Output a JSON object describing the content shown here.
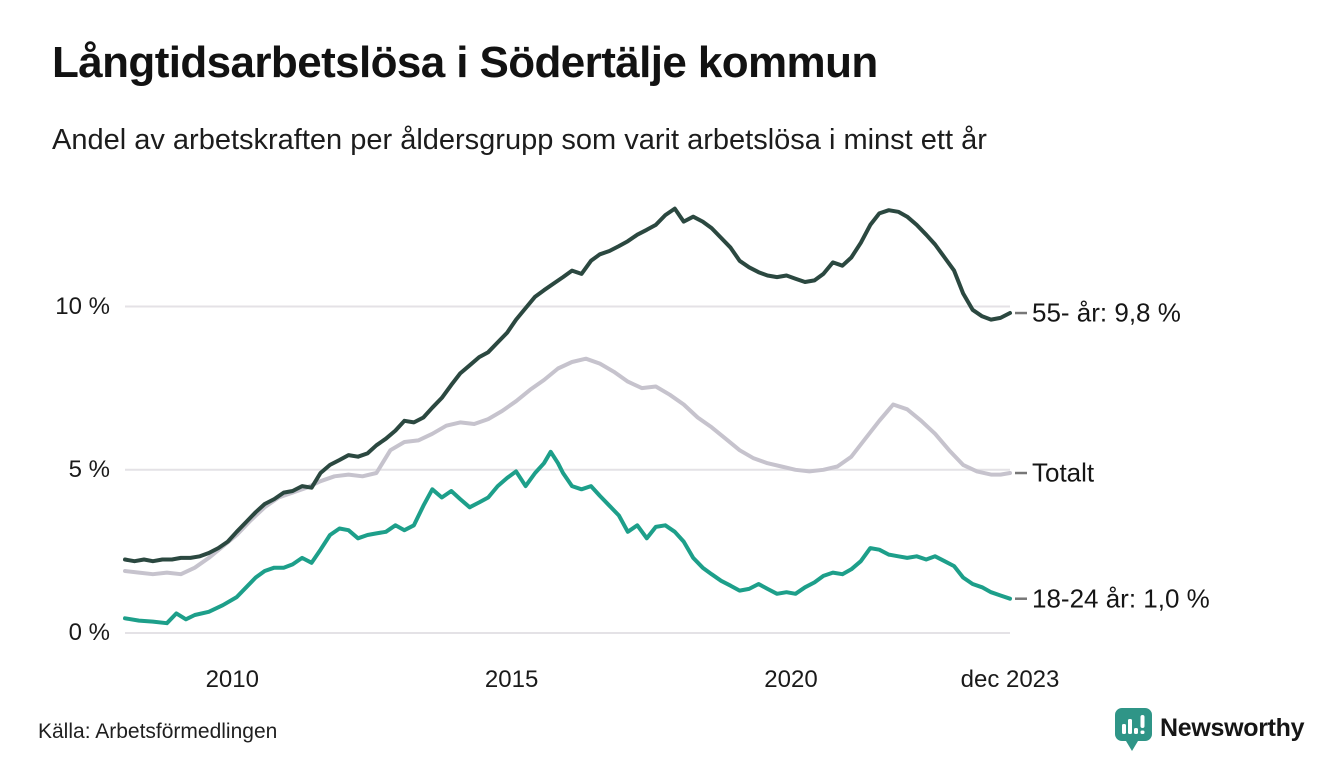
{
  "header": {
    "title": "Långtidsarbetslösa i Södertälje kommun",
    "subtitle": "Andel av arbetskraften per åldersgrupp som varit arbetslösa i minst ett år"
  },
  "footer": {
    "source": "Källa: Arbetsförmedlingen",
    "brand": "Newsworthy"
  },
  "colors": {
    "line_55": "#2b4840",
    "line_total": "#c6c3cd",
    "line_18_24": "#1d9f8a",
    "grid": "#e4e2e6",
    "label_dash": "#777777",
    "brand_teal": "#2f9587",
    "text": "#161616"
  },
  "chart_data": {
    "type": "line",
    "title": "Långtidsarbetslösa i Södertälje kommun",
    "subtitle": "Andel av arbetskraften per åldersgrupp som varit arbetslösa i minst ett år",
    "unit": "%",
    "grid": "horizontal-only",
    "legend_position": "right-end-labels",
    "x_axis": {
      "range": [
        2008.08,
        2023.92
      ],
      "ticks": [
        {
          "label": "2010",
          "year": 2010
        },
        {
          "label": "2015",
          "year": 2015
        },
        {
          "label": "2020",
          "year": 2020
        },
        {
          "label": "dec 2023",
          "year": 2023.92
        }
      ]
    },
    "y_axis": {
      "range": [
        0,
        13.5
      ],
      "gridlines": [
        0,
        5,
        10
      ],
      "ticks": [
        {
          "label": "10 %",
          "value": 10
        },
        {
          "label": "5 %",
          "value": 5
        },
        {
          "label": "0 %",
          "value": 0
        }
      ]
    },
    "series": [
      {
        "name": "55- år",
        "end_label": "55- år: 9,8 %",
        "end_value": 9.8,
        "color": "#2b4840",
        "points": [
          [
            2008.08,
            2.25
          ],
          [
            2008.25,
            2.2
          ],
          [
            2008.42,
            2.25
          ],
          [
            2008.58,
            2.2
          ],
          [
            2008.75,
            2.25
          ],
          [
            2008.92,
            2.25
          ],
          [
            2009.08,
            2.3
          ],
          [
            2009.25,
            2.3
          ],
          [
            2009.42,
            2.35
          ],
          [
            2009.58,
            2.45
          ],
          [
            2009.75,
            2.6
          ],
          [
            2009.92,
            2.8
          ],
          [
            2010.08,
            3.1
          ],
          [
            2010.25,
            3.4
          ],
          [
            2010.42,
            3.7
          ],
          [
            2010.58,
            3.95
          ],
          [
            2010.75,
            4.1
          ],
          [
            2010.92,
            4.3
          ],
          [
            2011.08,
            4.35
          ],
          [
            2011.25,
            4.5
          ],
          [
            2011.42,
            4.45
          ],
          [
            2011.58,
            4.9
          ],
          [
            2011.75,
            5.15
          ],
          [
            2011.92,
            5.3
          ],
          [
            2012.08,
            5.45
          ],
          [
            2012.25,
            5.4
          ],
          [
            2012.42,
            5.5
          ],
          [
            2012.58,
            5.75
          ],
          [
            2012.75,
            5.95
          ],
          [
            2012.92,
            6.2
          ],
          [
            2013.08,
            6.5
          ],
          [
            2013.25,
            6.45
          ],
          [
            2013.42,
            6.6
          ],
          [
            2013.58,
            6.9
          ],
          [
            2013.75,
            7.2
          ],
          [
            2013.92,
            7.6
          ],
          [
            2014.08,
            7.95
          ],
          [
            2014.25,
            8.2
          ],
          [
            2014.42,
            8.45
          ],
          [
            2014.58,
            8.6
          ],
          [
            2014.75,
            8.9
          ],
          [
            2014.92,
            9.2
          ],
          [
            2015.08,
            9.6
          ],
          [
            2015.25,
            9.95
          ],
          [
            2015.42,
            10.3
          ],
          [
            2015.58,
            10.5
          ],
          [
            2015.75,
            10.7
          ],
          [
            2015.92,
            10.9
          ],
          [
            2016.08,
            11.1
          ],
          [
            2016.25,
            11.0
          ],
          [
            2016.42,
            11.4
          ],
          [
            2016.58,
            11.6
          ],
          [
            2016.75,
            11.7
          ],
          [
            2016.92,
            11.85
          ],
          [
            2017.08,
            12.0
          ],
          [
            2017.25,
            12.2
          ],
          [
            2017.42,
            12.35
          ],
          [
            2017.58,
            12.5
          ],
          [
            2017.75,
            12.8
          ],
          [
            2017.92,
            13.0
          ],
          [
            2018.08,
            12.6
          ],
          [
            2018.25,
            12.75
          ],
          [
            2018.42,
            12.6
          ],
          [
            2018.58,
            12.4
          ],
          [
            2018.75,
            12.1
          ],
          [
            2018.92,
            11.8
          ],
          [
            2019.08,
            11.4
          ],
          [
            2019.25,
            11.2
          ],
          [
            2019.42,
            11.05
          ],
          [
            2019.58,
            10.95
          ],
          [
            2019.75,
            10.9
          ],
          [
            2019.92,
            10.95
          ],
          [
            2020.08,
            10.85
          ],
          [
            2020.25,
            10.75
          ],
          [
            2020.42,
            10.8
          ],
          [
            2020.58,
            11.0
          ],
          [
            2020.75,
            11.35
          ],
          [
            2020.92,
            11.25
          ],
          [
            2021.08,
            11.5
          ],
          [
            2021.25,
            11.95
          ],
          [
            2021.42,
            12.5
          ],
          [
            2021.58,
            12.85
          ],
          [
            2021.75,
            12.95
          ],
          [
            2021.92,
            12.9
          ],
          [
            2022.08,
            12.75
          ],
          [
            2022.25,
            12.5
          ],
          [
            2022.42,
            12.2
          ],
          [
            2022.58,
            11.9
          ],
          [
            2022.75,
            11.5
          ],
          [
            2022.92,
            11.1
          ],
          [
            2023.08,
            10.4
          ],
          [
            2023.25,
            9.9
          ],
          [
            2023.42,
            9.7
          ],
          [
            2023.58,
            9.6
          ],
          [
            2023.75,
            9.65
          ],
          [
            2023.92,
            9.8
          ]
        ]
      },
      {
        "name": "Totalt",
        "end_label": "Totalt",
        "end_value": 4.9,
        "color": "#c6c3cd",
        "points": [
          [
            2008.08,
            1.9
          ],
          [
            2008.33,
            1.85
          ],
          [
            2008.58,
            1.8
          ],
          [
            2008.83,
            1.85
          ],
          [
            2009.08,
            1.8
          ],
          [
            2009.33,
            2.0
          ],
          [
            2009.58,
            2.3
          ],
          [
            2009.83,
            2.65
          ],
          [
            2010.08,
            3.0
          ],
          [
            2010.33,
            3.45
          ],
          [
            2010.58,
            3.85
          ],
          [
            2010.83,
            4.15
          ],
          [
            2011.08,
            4.3
          ],
          [
            2011.33,
            4.45
          ],
          [
            2011.58,
            4.65
          ],
          [
            2011.83,
            4.8
          ],
          [
            2012.08,
            4.85
          ],
          [
            2012.33,
            4.8
          ],
          [
            2012.58,
            4.9
          ],
          [
            2012.83,
            5.6
          ],
          [
            2013.08,
            5.85
          ],
          [
            2013.33,
            5.9
          ],
          [
            2013.58,
            6.1
          ],
          [
            2013.83,
            6.35
          ],
          [
            2014.08,
            6.45
          ],
          [
            2014.33,
            6.4
          ],
          [
            2014.58,
            6.55
          ],
          [
            2014.83,
            6.8
          ],
          [
            2015.08,
            7.1
          ],
          [
            2015.33,
            7.45
          ],
          [
            2015.58,
            7.75
          ],
          [
            2015.83,
            8.1
          ],
          [
            2016.08,
            8.3
          ],
          [
            2016.33,
            8.4
          ],
          [
            2016.58,
            8.25
          ],
          [
            2016.83,
            8.0
          ],
          [
            2017.08,
            7.7
          ],
          [
            2017.33,
            7.5
          ],
          [
            2017.58,
            7.55
          ],
          [
            2017.83,
            7.3
          ],
          [
            2018.08,
            7.0
          ],
          [
            2018.33,
            6.6
          ],
          [
            2018.58,
            6.3
          ],
          [
            2018.83,
            5.95
          ],
          [
            2019.08,
            5.6
          ],
          [
            2019.33,
            5.35
          ],
          [
            2019.58,
            5.2
          ],
          [
            2019.83,
            5.1
          ],
          [
            2020.08,
            5.0
          ],
          [
            2020.33,
            4.95
          ],
          [
            2020.58,
            5.0
          ],
          [
            2020.83,
            5.1
          ],
          [
            2021.08,
            5.4
          ],
          [
            2021.33,
            5.95
          ],
          [
            2021.58,
            6.5
          ],
          [
            2021.83,
            7.0
          ],
          [
            2022.08,
            6.85
          ],
          [
            2022.33,
            6.5
          ],
          [
            2022.58,
            6.1
          ],
          [
            2022.83,
            5.6
          ],
          [
            2023.08,
            5.15
          ],
          [
            2023.33,
            4.95
          ],
          [
            2023.58,
            4.85
          ],
          [
            2023.75,
            4.85
          ],
          [
            2023.92,
            4.9
          ]
        ]
      },
      {
        "name": "18-24 år",
        "end_label": "18-24 år: 1,0 %",
        "end_value": 1.0,
        "color": "#1d9f8a",
        "points": [
          [
            2008.08,
            0.45
          ],
          [
            2008.33,
            0.38
          ],
          [
            2008.58,
            0.35
          ],
          [
            2008.83,
            0.3
          ],
          [
            2009.0,
            0.6
          ],
          [
            2009.17,
            0.42
          ],
          [
            2009.33,
            0.55
          ],
          [
            2009.58,
            0.65
          ],
          [
            2009.83,
            0.85
          ],
          [
            2010.08,
            1.1
          ],
          [
            2010.25,
            1.4
          ],
          [
            2010.42,
            1.7
          ],
          [
            2010.58,
            1.9
          ],
          [
            2010.75,
            2.0
          ],
          [
            2010.92,
            2.0
          ],
          [
            2011.08,
            2.1
          ],
          [
            2011.25,
            2.3
          ],
          [
            2011.42,
            2.15
          ],
          [
            2011.58,
            2.55
          ],
          [
            2011.75,
            3.0
          ],
          [
            2011.92,
            3.2
          ],
          [
            2012.08,
            3.15
          ],
          [
            2012.25,
            2.9
          ],
          [
            2012.42,
            3.0
          ],
          [
            2012.58,
            3.05
          ],
          [
            2012.75,
            3.1
          ],
          [
            2012.92,
            3.3
          ],
          [
            2013.08,
            3.15
          ],
          [
            2013.25,
            3.3
          ],
          [
            2013.42,
            3.9
          ],
          [
            2013.58,
            4.4
          ],
          [
            2013.75,
            4.15
          ],
          [
            2013.92,
            4.35
          ],
          [
            2014.08,
            4.1
          ],
          [
            2014.25,
            3.85
          ],
          [
            2014.42,
            4.0
          ],
          [
            2014.58,
            4.15
          ],
          [
            2014.75,
            4.5
          ],
          [
            2014.92,
            4.75
          ],
          [
            2015.08,
            4.95
          ],
          [
            2015.25,
            4.5
          ],
          [
            2015.42,
            4.9
          ],
          [
            2015.58,
            5.2
          ],
          [
            2015.7,
            5.55
          ],
          [
            2015.83,
            5.2
          ],
          [
            2015.92,
            4.9
          ],
          [
            2016.08,
            4.5
          ],
          [
            2016.25,
            4.4
          ],
          [
            2016.42,
            4.5
          ],
          [
            2016.58,
            4.2
          ],
          [
            2016.75,
            3.9
          ],
          [
            2016.92,
            3.6
          ],
          [
            2017.08,
            3.1
          ],
          [
            2017.25,
            3.3
          ],
          [
            2017.42,
            2.9
          ],
          [
            2017.58,
            3.25
          ],
          [
            2017.75,
            3.3
          ],
          [
            2017.92,
            3.1
          ],
          [
            2018.08,
            2.8
          ],
          [
            2018.25,
            2.3
          ],
          [
            2018.42,
            2.0
          ],
          [
            2018.58,
            1.8
          ],
          [
            2018.75,
            1.6
          ],
          [
            2018.92,
            1.45
          ],
          [
            2019.08,
            1.3
          ],
          [
            2019.25,
            1.35
          ],
          [
            2019.42,
            1.5
          ],
          [
            2019.58,
            1.35
          ],
          [
            2019.75,
            1.2
          ],
          [
            2019.92,
            1.25
          ],
          [
            2020.08,
            1.2
          ],
          [
            2020.25,
            1.4
          ],
          [
            2020.42,
            1.55
          ],
          [
            2020.58,
            1.75
          ],
          [
            2020.75,
            1.85
          ],
          [
            2020.92,
            1.8
          ],
          [
            2021.08,
            1.95
          ],
          [
            2021.25,
            2.2
          ],
          [
            2021.42,
            2.6
          ],
          [
            2021.58,
            2.55
          ],
          [
            2021.75,
            2.4
          ],
          [
            2021.92,
            2.35
          ],
          [
            2022.08,
            2.3
          ],
          [
            2022.25,
            2.35
          ],
          [
            2022.42,
            2.25
          ],
          [
            2022.58,
            2.35
          ],
          [
            2022.75,
            2.2
          ],
          [
            2022.92,
            2.05
          ],
          [
            2023.08,
            1.7
          ],
          [
            2023.25,
            1.5
          ],
          [
            2023.42,
            1.4
          ],
          [
            2023.58,
            1.25
          ],
          [
            2023.75,
            1.15
          ],
          [
            2023.92,
            1.05
          ]
        ]
      }
    ]
  }
}
